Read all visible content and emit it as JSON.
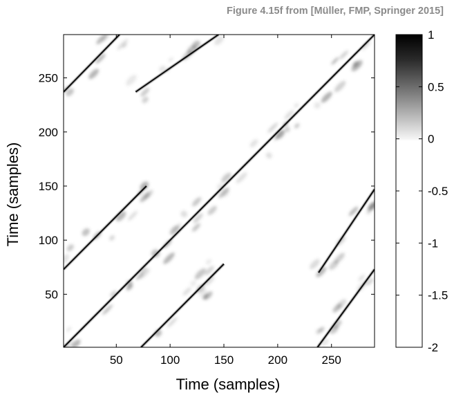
{
  "caption": "Figure 4.15f from [Müller, FMP, Springer 2015]",
  "chart_data": {
    "type": "heatmap",
    "title": "",
    "xlabel": "Time (samples)",
    "ylabel": "Time (samples)",
    "xlim": [
      1,
      290
    ],
    "ylim": [
      1,
      290
    ],
    "xticks": [
      50,
      100,
      150,
      200,
      250
    ],
    "yticks": [
      50,
      100,
      150,
      200,
      250
    ],
    "colorbar": {
      "range": [
        -2,
        1
      ],
      "ticks": [
        1,
        0.5,
        0,
        -0.5,
        -1,
        -1.5,
        -2
      ],
      "tick_labels": [
        "1",
        "0.5",
        "0",
        "-0.5",
        "-1",
        "-1.5",
        "-2"
      ],
      "colormap": "gray_r above 0, white below 0"
    },
    "path_segments": [
      {
        "name": "main diagonal",
        "from": [
          1,
          1
        ],
        "to": [
          290,
          290
        ]
      },
      {
        "from": [
          1,
          73
        ],
        "to": [
          78,
          150
        ]
      },
      {
        "from": [
          73,
          1
        ],
        "to": [
          150,
          78
        ]
      },
      {
        "from": [
          1,
          237
        ],
        "to": [
          53,
          290
        ]
      },
      {
        "from": [
          68,
          237
        ],
        "to": [
          145,
          290
        ]
      },
      {
        "from": [
          238,
          70
        ],
        "to": [
          290,
          147
        ]
      },
      {
        "from": [
          237,
          1
        ],
        "to": [
          290,
          73
        ]
      }
    ]
  }
}
